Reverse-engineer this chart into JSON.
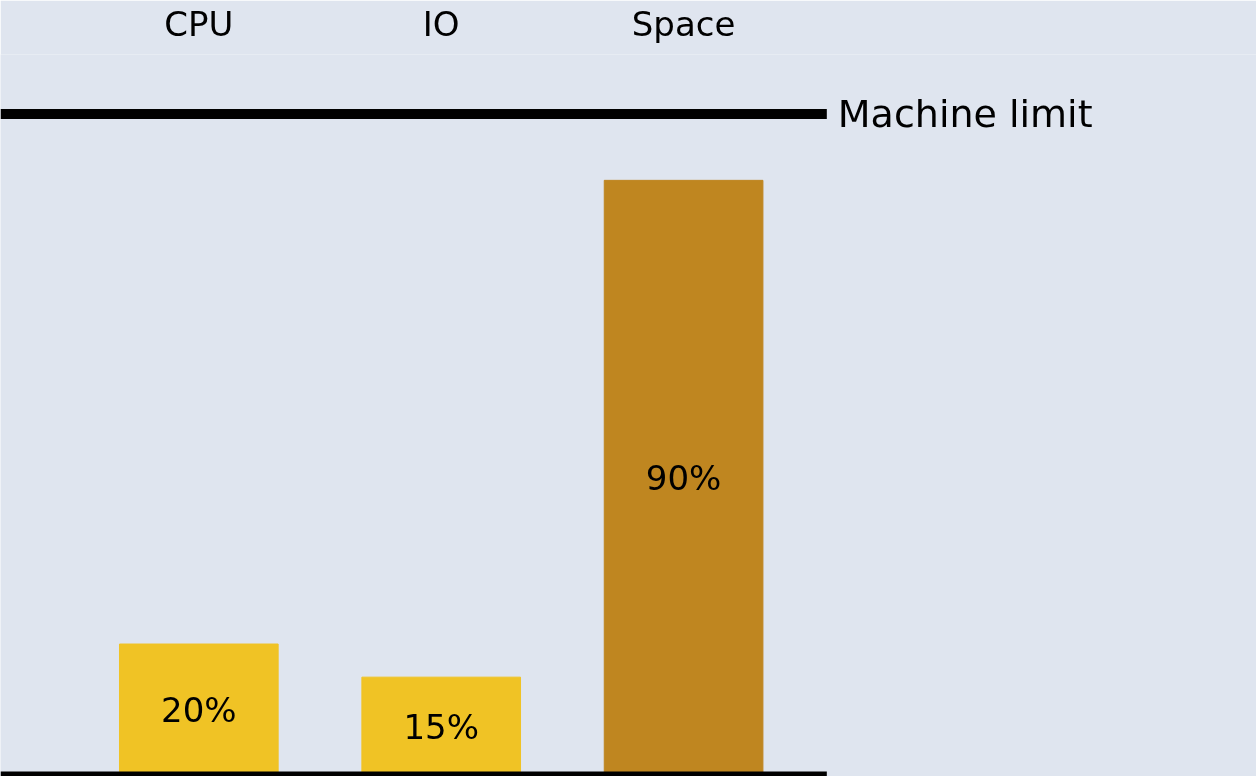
{
  "chart_data": {
    "type": "bar",
    "categories": [
      "CPU",
      "IO",
      "Space"
    ],
    "values": [
      20,
      15,
      90
    ],
    "value_labels": [
      "20%",
      "15%",
      "90%"
    ],
    "colors": [
      "#f0c325",
      "#f0c325",
      "#bf8620"
    ],
    "tick_labels": "x",
    "grid": false,
    "ref_lines": [
      {
        "axis": "y",
        "value": 100,
        "label": "Machine limit",
        "color": "#000000"
      }
    ]
  }
}
